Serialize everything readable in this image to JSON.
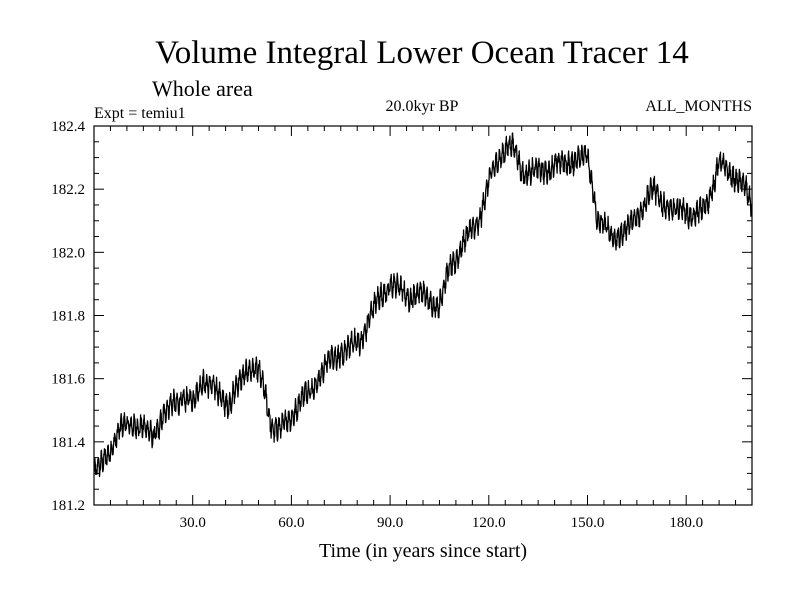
{
  "chart_data": {
    "type": "line",
    "title": "Volume Integral Lower Ocean Tracer 14",
    "subtitle": "Whole area",
    "experiment_label": "Expt = temiu1",
    "period_label": "20.0kyr BP",
    "months_label": "ALL_MONTHS",
    "xlabel": "Time (in years since start)",
    "ylabel": "",
    "xlim": [
      0,
      200
    ],
    "ylim": [
      181.2,
      182.4
    ],
    "x_ticks": [
      30,
      60,
      90,
      120,
      150,
      180
    ],
    "x_tick_labels": [
      "30.0",
      "60.0",
      "90.0",
      "120.0",
      "150.0",
      "180.0"
    ],
    "y_ticks": [
      181.2,
      181.4,
      181.6,
      181.8,
      182.0,
      182.2,
      182.4
    ],
    "y_tick_labels": [
      "181.2",
      "181.4",
      "181.6",
      "181.8",
      "182.0",
      "182.2",
      "182.4"
    ],
    "line_color": "#000000",
    "series": [
      {
        "name": "tracer14",
        "oscillation_amplitude": 0.04,
        "x": [
          0,
          2,
          5,
          8,
          12,
          15,
          18,
          21,
          24,
          27,
          30,
          33,
          35,
          38,
          41,
          44,
          47,
          50,
          52,
          54,
          57,
          60,
          63,
          66,
          69,
          72,
          75,
          78,
          81,
          84,
          87,
          90,
          93,
          96,
          99,
          102,
          105,
          108,
          111,
          114,
          117,
          120,
          123,
          126,
          128,
          130,
          133,
          136,
          139,
          142,
          145,
          148,
          150,
          152,
          153,
          155,
          158,
          161,
          164,
          167,
          170,
          173,
          176,
          179,
          182,
          185,
          188,
          190,
          193,
          196,
          198,
          200
        ],
        "y": [
          181.3,
          181.32,
          181.38,
          181.44,
          181.46,
          181.44,
          181.42,
          181.48,
          181.52,
          181.54,
          181.52,
          181.6,
          181.58,
          181.55,
          181.52,
          181.58,
          181.64,
          181.62,
          181.55,
          181.45,
          181.44,
          181.48,
          181.54,
          181.56,
          181.62,
          181.66,
          181.68,
          181.7,
          181.72,
          181.8,
          181.86,
          181.9,
          181.88,
          181.86,
          181.87,
          181.85,
          181.83,
          181.95,
          182.0,
          182.06,
          182.1,
          182.22,
          182.3,
          182.34,
          182.32,
          182.26,
          182.25,
          182.26,
          182.27,
          182.28,
          182.29,
          182.3,
          182.3,
          182.18,
          182.1,
          182.08,
          182.05,
          182.06,
          182.1,
          182.15,
          182.2,
          182.16,
          182.12,
          182.15,
          182.1,
          182.14,
          182.2,
          182.28,
          182.26,
          182.22,
          182.2,
          182.15
        ]
      }
    ]
  }
}
